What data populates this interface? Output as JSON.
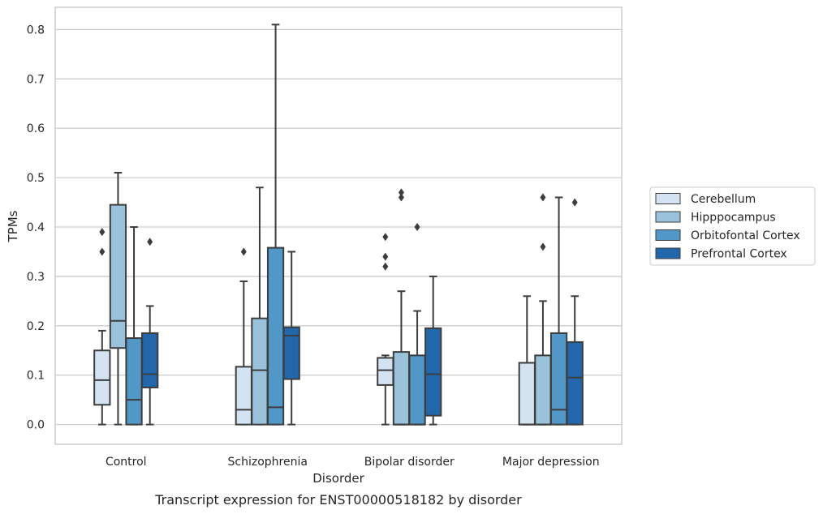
{
  "chart_data": {
    "type": "box",
    "caption": "Transcript expression for ENST00000518182 by disorder",
    "xlabel": "Disorder",
    "ylabel": "TPMs",
    "ylim": [
      -0.04,
      0.845
    ],
    "yticks": [
      "0.0",
      "0.1",
      "0.2",
      "0.3",
      "0.4",
      "0.5",
      "0.6",
      "0.7",
      "0.8"
    ],
    "yvals": [
      0,
      0.1,
      0.2,
      0.3,
      0.4,
      0.5,
      0.6,
      0.7,
      0.8
    ],
    "grid": true,
    "legend_position": "right",
    "categories": [
      "Control",
      "Schizophrenia",
      "Bipolar disorder",
      "Major depression"
    ],
    "series": [
      {
        "name": "Cerebellum",
        "color": "#d3e3f2",
        "boxes": [
          {
            "whislo": 0.0,
            "q1": 0.04,
            "med": 0.09,
            "q3": 0.15,
            "whishi": 0.19,
            "fliers": [
              0.35,
              0.39
            ]
          },
          {
            "whislo": 0.0,
            "q1": 0.0,
            "med": 0.03,
            "q3": 0.117,
            "whishi": 0.29,
            "fliers": [
              0.35
            ]
          },
          {
            "whislo": 0.0,
            "q1": 0.08,
            "med": 0.11,
            "q3": 0.135,
            "whishi": 0.14,
            "fliers": [
              0.32,
              0.34,
              0.38
            ]
          },
          {
            "whislo": 0.0,
            "q1": 0.0,
            "med": 0.0,
            "q3": 0.125,
            "whishi": 0.26,
            "fliers": []
          }
        ]
      },
      {
        "name": "Hipppocampus",
        "color": "#9ac2db",
        "boxes": [
          {
            "whislo": 0.0,
            "q1": 0.155,
            "med": 0.21,
            "q3": 0.445,
            "whishi": 0.51,
            "fliers": []
          },
          {
            "whislo": 0.0,
            "q1": 0.0,
            "med": 0.11,
            "q3": 0.215,
            "whishi": 0.48,
            "fliers": []
          },
          {
            "whislo": 0.0,
            "q1": 0.0,
            "med": 0.0,
            "q3": 0.147,
            "whishi": 0.27,
            "fliers": [
              0.46,
              0.47
            ]
          },
          {
            "whislo": 0.0,
            "q1": 0.0,
            "med": 0.0,
            "q3": 0.14,
            "whishi": 0.25,
            "fliers": [
              0.36,
              0.46
            ]
          }
        ]
      },
      {
        "name": "Orbitofontal Cortex",
        "color": "#5197c7",
        "boxes": [
          {
            "whislo": 0.0,
            "q1": 0.0,
            "med": 0.05,
            "q3": 0.175,
            "whishi": 0.4,
            "fliers": []
          },
          {
            "whislo": 0.0,
            "q1": 0.0,
            "med": 0.035,
            "q3": 0.358,
            "whishi": 0.81,
            "fliers": []
          },
          {
            "whislo": 0.0,
            "q1": 0.0,
            "med": 0.0,
            "q3": 0.14,
            "whishi": 0.23,
            "fliers": [
              0.4
            ]
          },
          {
            "whislo": 0.0,
            "q1": 0.0,
            "med": 0.03,
            "q3": 0.185,
            "whishi": 0.46,
            "fliers": []
          }
        ]
      },
      {
        "name": "Prefrontal Cortex",
        "color": "#2266ac",
        "boxes": [
          {
            "whislo": 0.0,
            "q1": 0.075,
            "med": 0.102,
            "q3": 0.185,
            "whishi": 0.24,
            "fliers": [
              0.37
            ]
          },
          {
            "whislo": 0.0,
            "q1": 0.092,
            "med": 0.18,
            "q3": 0.197,
            "whishi": 0.35,
            "fliers": []
          },
          {
            "whislo": 0.0,
            "q1": 0.018,
            "med": 0.102,
            "q3": 0.195,
            "whishi": 0.3,
            "fliers": []
          },
          {
            "whislo": 0.0,
            "q1": 0.0,
            "med": 0.095,
            "q3": 0.167,
            "whishi": 0.26,
            "fliers": [
              0.45
            ]
          }
        ]
      }
    ]
  }
}
